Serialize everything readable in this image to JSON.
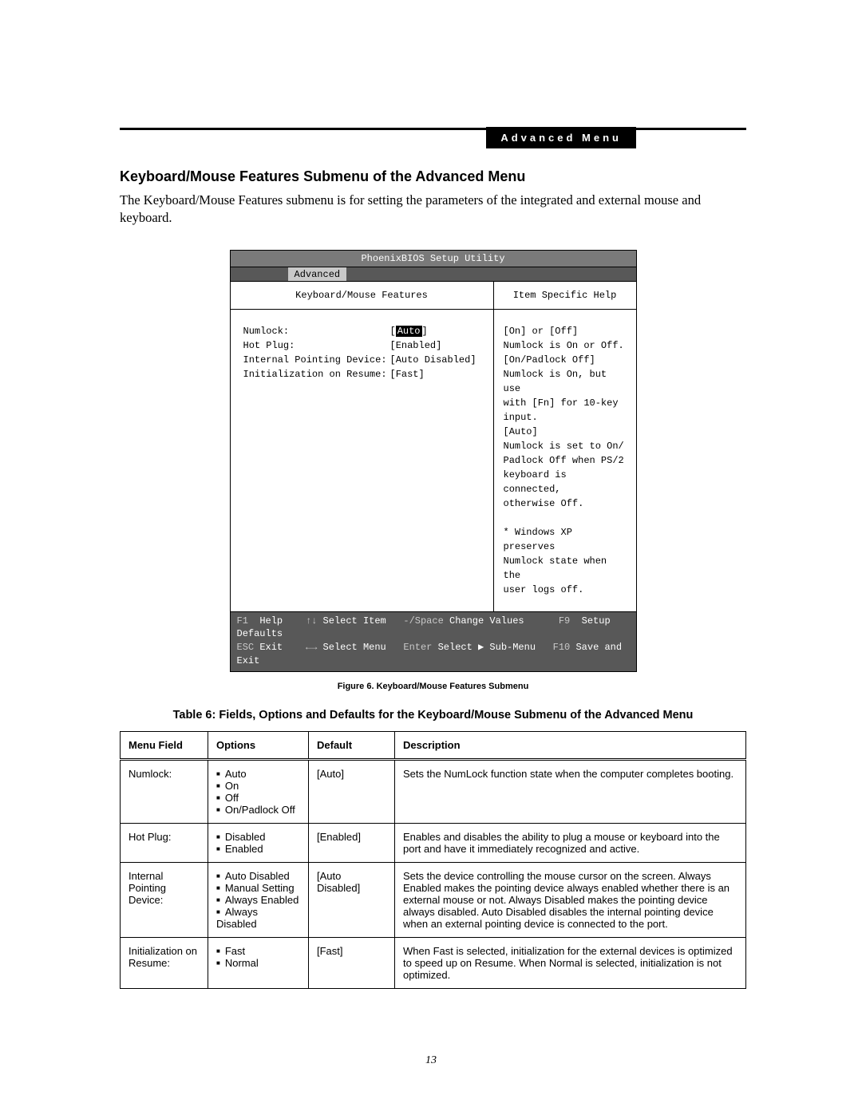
{
  "header": {
    "badge": "Advanced Menu"
  },
  "section": {
    "title": "Keyboard/Mouse Features Submenu of the Advanced Menu",
    "intro": "The Keyboard/Mouse Features submenu is for setting the parameters of the integrated and external mouse and keyboard."
  },
  "bios": {
    "title": "PhoenixBIOS Setup Utility",
    "active_menu": "Advanced",
    "left_header": "Keyboard/Mouse Features",
    "right_header": "Item Specific Help",
    "settings": [
      {
        "label": "Numlock:",
        "value": "Auto",
        "selected": true
      },
      {
        "label": "Hot Plug:",
        "value": "[Enabled]",
        "selected": false
      },
      {
        "label": "Internal Pointing Device:",
        "value": "[Auto Disabled]",
        "selected": false
      },
      {
        "label": "Initialization on Resume:",
        "value": "[Fast]",
        "selected": false
      }
    ],
    "help_lines": [
      "[On] or [Off]",
      "Numlock is On or Off.",
      "[On/Padlock Off]",
      "Numlock is On, but use",
      "with [Fn] for 10-key",
      "input.",
      "[Auto]",
      "Numlock is set to On/",
      "Padlock Off when PS/2",
      "keyboard is connected,",
      "otherwise Off.",
      "",
      "* Windows XP preserves",
      "Numlock state when the",
      "user logs off."
    ],
    "footer": {
      "l1": {
        "f1": "F1",
        "help": "Help",
        "arrows1": "↑↓",
        "sel_item": "Select Item",
        "pm": "-/Space",
        "chg": "Change Values",
        "f9": "F9",
        "setup": "Setup Defaults"
      },
      "l2": {
        "esc": "ESC",
        "exit": "Exit",
        "arrows2": "←→",
        "sel_menu": "Select Menu",
        "enter": "Enter",
        "sub": "Select ▶ Sub-Menu",
        "f10": "F10",
        "save": "Save and Exit"
      }
    }
  },
  "figure_caption": "Figure 6.   Keyboard/Mouse Features Submenu",
  "table_title": "Table 6: Fields, Options and Defaults for the Keyboard/Mouse Submenu of the Advanced Menu",
  "table": {
    "headers": {
      "field": "Menu Field",
      "options": "Options",
      "def": "Default",
      "desc": "Description"
    },
    "rows": [
      {
        "field": "Numlock:",
        "options": [
          "Auto",
          "On",
          "Off",
          "On/Padlock Off"
        ],
        "def": "[Auto]",
        "desc": "Sets the NumLock function state when the computer completes booting."
      },
      {
        "field": "Hot Plug:",
        "options": [
          "Disabled",
          "Enabled"
        ],
        "def": "[Enabled]",
        "desc": "Enables and disables the ability to plug a mouse or keyboard into the port and have it immediately recognized and active."
      },
      {
        "field": "Internal Pointing Device:",
        "options": [
          "Auto Disabled",
          "Manual Setting",
          "Always Enabled",
          "Always Disabled"
        ],
        "def": "[Auto Disabled]",
        "desc": "Sets the device controlling the mouse cursor on the screen. Always Enabled makes the pointing device always enabled whether there is an external mouse or not. Always Disabled makes the pointing device always disabled. Auto Disabled disables the internal pointing device when an external pointing device is connected to the port."
      },
      {
        "field": "Initialization on Resume:",
        "options": [
          "Fast",
          "Normal"
        ],
        "def": "[Fast]",
        "desc": "When Fast is selected, initialization for the external devices is optimized to speed up on Resume. When Normal is selected, initialization is not optimized."
      }
    ]
  },
  "page_number": "13"
}
